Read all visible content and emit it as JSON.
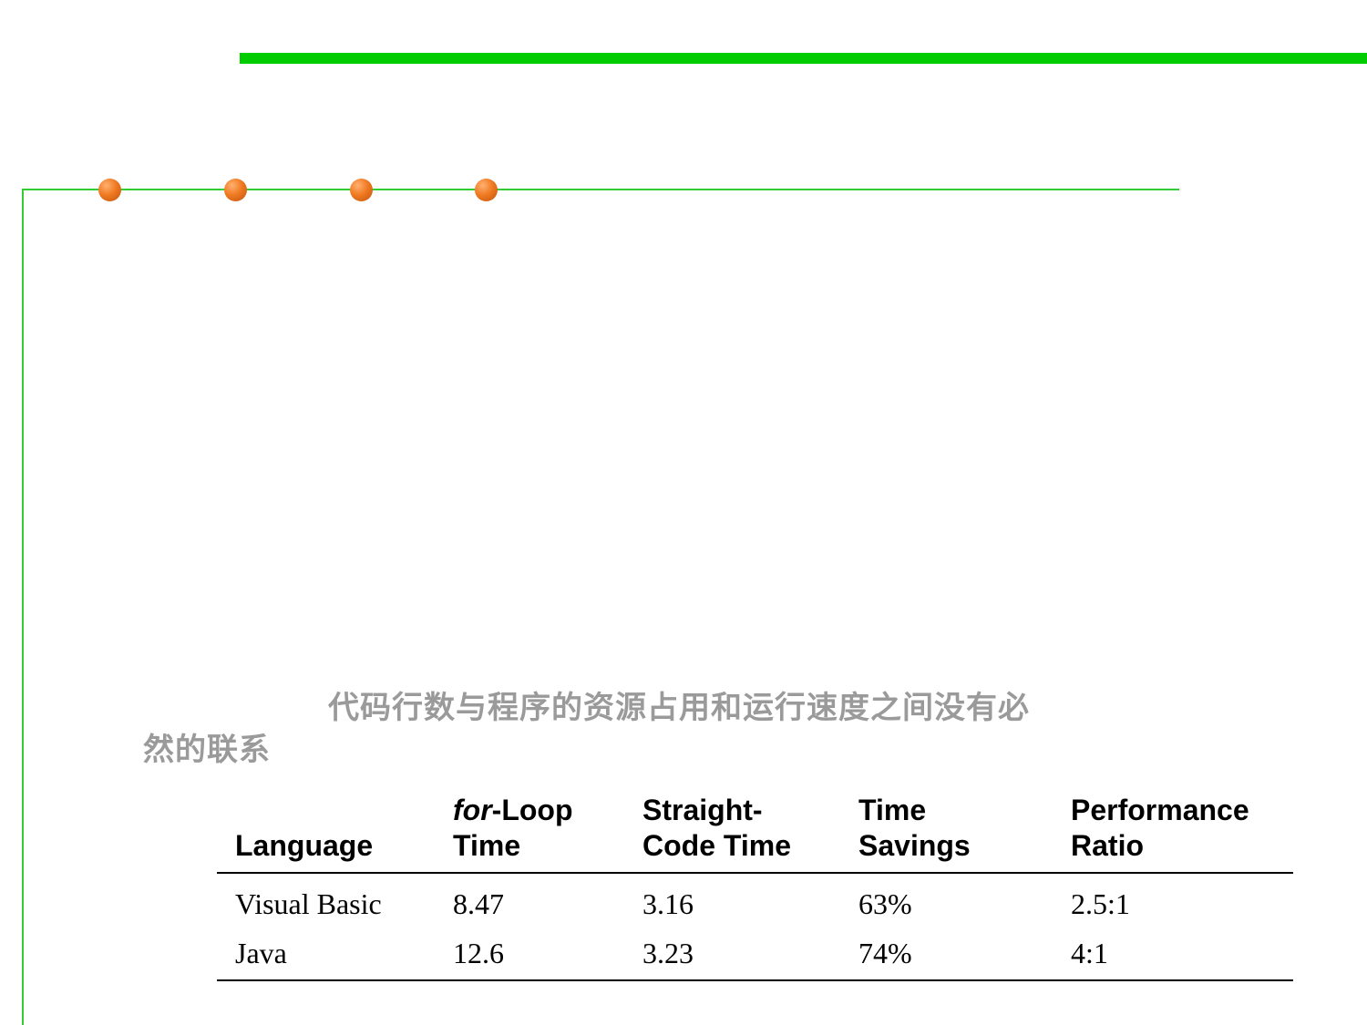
{
  "caption": {
    "line1": "代码行数与程序的资源占用和运行速度之间没有必",
    "line2": "然的联系"
  },
  "table": {
    "headers": [
      {
        "line1": "",
        "line2": "Language"
      },
      {
        "line1_italic": "for",
        "line1_rest": "-Loop",
        "line2": "Time"
      },
      {
        "line1": "Straight-",
        "line2": "Code Time"
      },
      {
        "line1": "Time",
        "line2": "Savings"
      },
      {
        "line1": "Performance",
        "line2": "Ratio"
      }
    ],
    "rows": [
      [
        "Visual Basic",
        "8.47",
        "3.16",
        "63%",
        "2.5:1"
      ],
      [
        "Java",
        "12.6",
        "3.23",
        "74%",
        "4:1"
      ]
    ]
  },
  "colors": {
    "accent_green": "#00cc00",
    "rule_green": "#33cc33",
    "bullet_orange": "#f07a22",
    "caption_gray": "#9a9a9a"
  },
  "decorations": {
    "bullet_dots": 4
  }
}
